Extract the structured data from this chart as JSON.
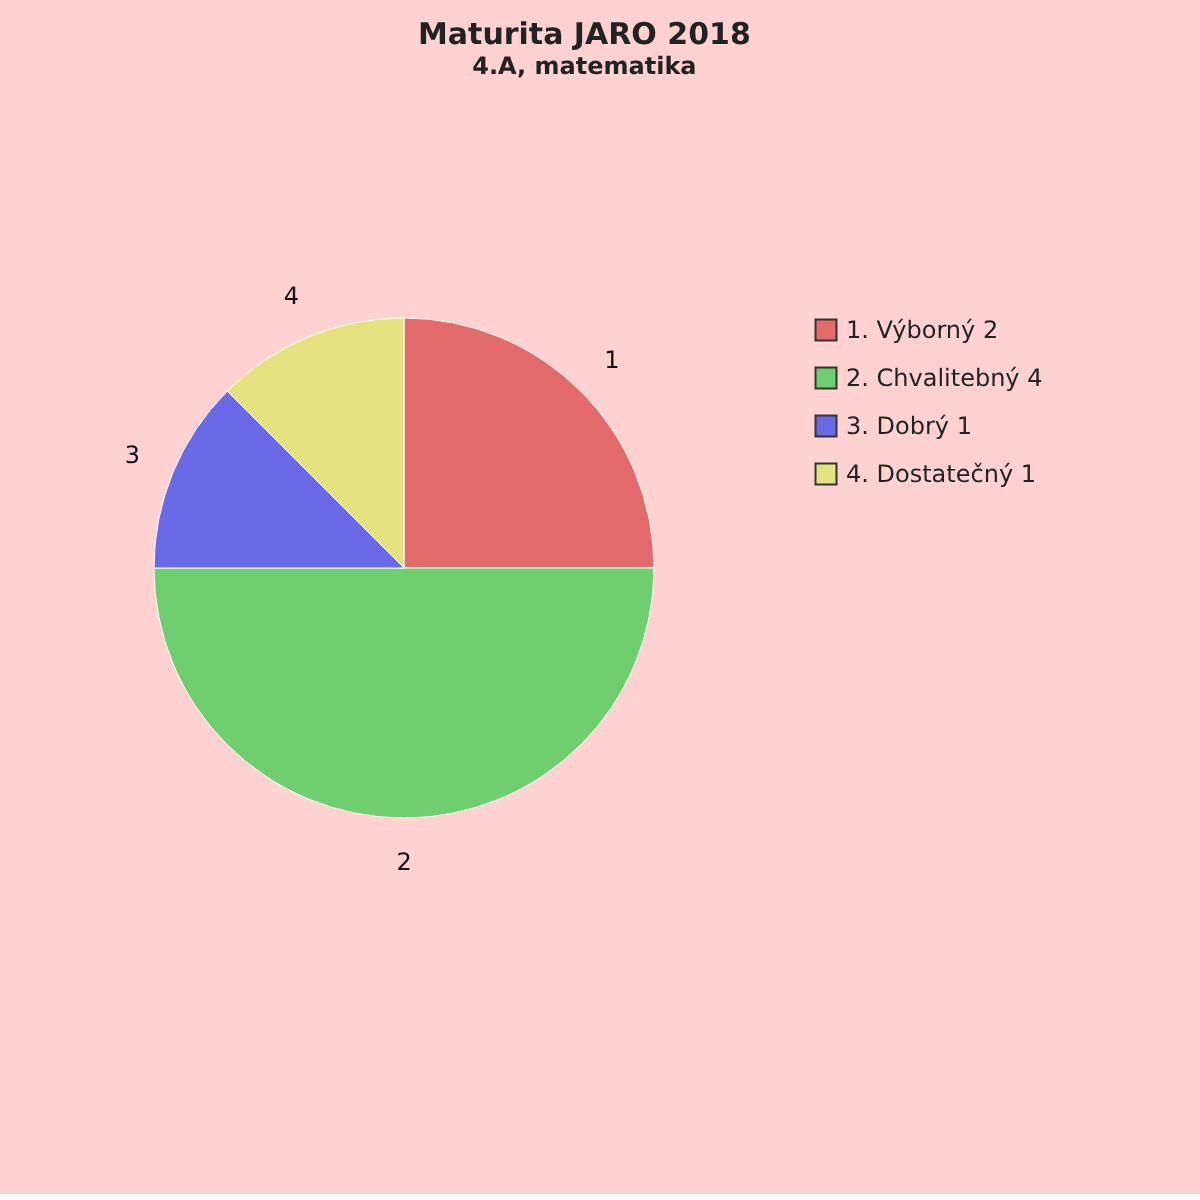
{
  "chart_data": {
    "type": "pie",
    "title": "Maturita JARO 2018",
    "subtitle": "4.A, matematika",
    "categories": [
      "1. Výborný 2",
      "2. Chvalitebný 4",
      "3. Dobrý 1",
      "4. Dostatečný 1"
    ],
    "values": [
      2,
      4,
      1,
      1
    ],
    "colors": [
      "#e26a6a",
      "#6fcf6f",
      "#6a6ae6",
      "#e4e27e"
    ],
    "annotations": [
      "1",
      "2",
      "3",
      "4"
    ],
    "legend": "right"
  }
}
